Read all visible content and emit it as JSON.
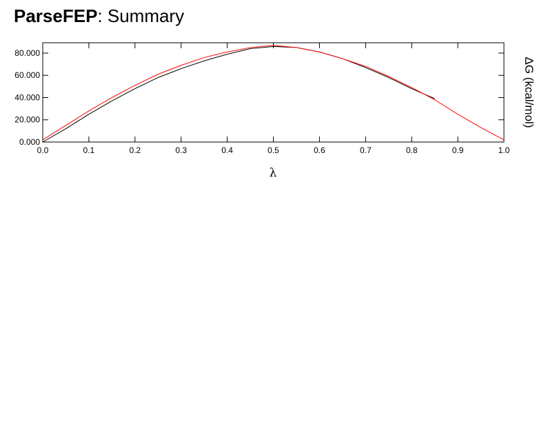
{
  "chart_data": {
    "type": "line",
    "title_bold": "ParseFEP",
    "title_rest": ": Summary",
    "xlabel": "λ",
    "ylabel": "ΔG (kcal/mol)",
    "x": [
      0,
      0.05,
      0.1,
      0.15,
      0.2,
      0.25,
      0.3,
      0.35,
      0.4,
      0.45,
      0.5,
      0.55,
      0.6,
      0.65,
      0.7,
      0.75,
      0.8,
      0.85,
      0.9,
      0.95,
      1.0
    ],
    "series": [
      {
        "name": null,
        "color": "#000000",
        "values": [
          0,
          12,
          25,
          37,
          48,
          58,
          66,
          73,
          79,
          84,
          86,
          85,
          81,
          75,
          67,
          58,
          48,
          39,
          null,
          null,
          null
        ]
      },
      {
        "name": null,
        "color": "#ff0000",
        "values": [
          2,
          15,
          28,
          40,
          51,
          61,
          69,
          76,
          81,
          85,
          87,
          85,
          81,
          75,
          68,
          59,
          49,
          38,
          25,
          13,
          2
        ]
      }
    ],
    "xlim": [
      0,
      1.0
    ],
    "xticks": [
      {
        "value": 0,
        "label": "0.0"
      },
      0.1,
      0.2,
      0.3,
      0.4,
      0.5,
      0.6,
      0.7,
      0.8,
      0.9,
      {
        "value": 1.0,
        "label": "1.0"
      }
    ],
    "ylim": [
      0,
      89.3
    ],
    "yticks": [
      {
        "value": 0,
        "label": "0.000"
      },
      {
        "value": 20,
        "label": "20.000"
      },
      {
        "value": 40,
        "label": "40.000"
      },
      {
        "value": 60,
        "label": "60.000"
      },
      {
        "value": 80,
        "label": "80.000"
      }
    ]
  }
}
